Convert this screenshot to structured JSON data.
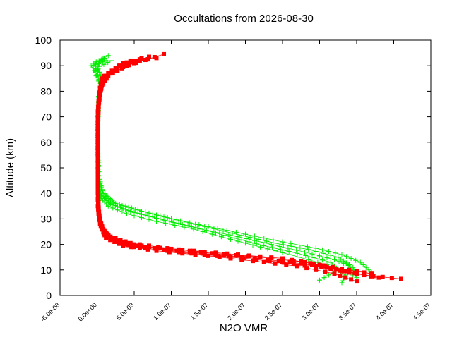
{
  "chart_data": {
    "type": "line",
    "title": "Occultations from 2026-08-30",
    "xlabel": "N2O VMR",
    "ylabel": "Altitude (km)",
    "xlim": [
      -5e-08,
      4.5e-07
    ],
    "ylim": [
      0,
      100
    ],
    "x_ticks": [
      -5e-08,
      0,
      5e-08,
      1e-07,
      1.5e-07,
      2e-07,
      2.5e-07,
      3e-07,
      3.5e-07,
      4e-07,
      4.5e-07
    ],
    "x_tick_labels": [
      "-5.0e-08",
      "0.0e+00",
      "5.0e-08",
      "1.0e-07",
      "1.5e-07",
      "2.0e-07",
      "2.5e-07",
      "3.0e-07",
      "3.5e-07",
      "4.0e-07",
      "4.5e-07"
    ],
    "y_ticks": [
      0,
      10,
      20,
      30,
      40,
      50,
      60,
      70,
      80,
      90,
      100
    ],
    "y_tick_labels": [
      "0",
      "10",
      "20",
      "30",
      "40",
      "50",
      "60",
      "70",
      "80",
      "90",
      "100"
    ],
    "grid": false,
    "legend": "none",
    "series": [
      {
        "color": "#00ee00",
        "marker": "plus",
        "profiles": [
          [
            [
              3.3e-07,
              5
            ],
            [
              3.35e-07,
              8
            ],
            [
              3.1e-07,
              12
            ],
            [
              2.6e-07,
              16
            ],
            [
              2.2e-07,
              19
            ],
            [
              1.8e-07,
              22
            ],
            [
              1.3e-07,
              26
            ],
            [
              8e-08,
              29
            ],
            [
              4e-08,
              32
            ],
            [
              1.5e-08,
              35
            ],
            [
              5e-09,
              38
            ],
            [
              2e-09,
              42
            ],
            [
              1e-09,
              50
            ],
            [
              1e-09,
              60
            ],
            [
              1e-09,
              70
            ],
            [
              3e-09,
              80
            ],
            [
              6e-09,
              86
            ],
            [
              -5e-09,
              91
            ],
            [
              1e-08,
              93
            ]
          ],
          [
            [
              3.5e-07,
              7
            ],
            [
              3.45e-07,
              11
            ],
            [
              3.2e-07,
              14
            ],
            [
              2.8e-07,
              17
            ],
            [
              2.35e-07,
              20
            ],
            [
              1.9e-07,
              23
            ],
            [
              1.4e-07,
              26
            ],
            [
              9e-08,
              29.5
            ],
            [
              5e-08,
              32.5
            ],
            [
              2e-08,
              35.5
            ],
            [
              6e-09,
              39
            ],
            [
              2e-09,
              44
            ],
            [
              1e-09,
              55
            ],
            [
              1e-09,
              65
            ],
            [
              2e-09,
              75
            ],
            [
              5e-09,
              82
            ],
            [
              -8e-09,
              90
            ],
            [
              1.5e-08,
              94
            ]
          ],
          [
            [
              3.7e-07,
              9
            ],
            [
              3.55e-07,
              13
            ],
            [
              3.3e-07,
              16
            ],
            [
              2.95e-07,
              18.5
            ],
            [
              2.5e-07,
              21
            ],
            [
              2e-07,
              24
            ],
            [
              1.5e-07,
              27
            ],
            [
              1e-07,
              30
            ],
            [
              6e-08,
              33
            ],
            [
              2.5e-08,
              36
            ],
            [
              8e-09,
              40
            ],
            [
              3e-09,
              46
            ],
            [
              1e-09,
              56
            ],
            [
              1e-09,
              66
            ],
            [
              2e-09,
              76
            ],
            [
              4e-09,
              84
            ],
            [
              -2e-09,
              89
            ],
            [
              2e-08,
              92
            ]
          ],
          [
            [
              3e-07,
              6
            ],
            [
              3.25e-07,
              10
            ],
            [
              3.15e-07,
              13
            ],
            [
              2.7e-07,
              16.5
            ],
            [
              2.25e-07,
              19.5
            ],
            [
              1.85e-07,
              22.5
            ],
            [
              1.35e-07,
              26.5
            ],
            [
              8.5e-08,
              30
            ],
            [
              4.5e-08,
              33
            ],
            [
              1.8e-08,
              36
            ],
            [
              5e-09,
              40
            ],
            [
              2e-09,
              48
            ],
            [
              1e-09,
              58
            ],
            [
              1e-09,
              68
            ],
            [
              2e-09,
              78
            ],
            [
              6e-09,
              85
            ],
            [
              0,
              90
            ],
            [
              8e-09,
              93
            ]
          ],
          [
            [
              3.45e-07,
              8
            ],
            [
              3.4e-07,
              12
            ],
            [
              3.25e-07,
              15
            ],
            [
              2.85e-07,
              18
            ],
            [
              2.4e-07,
              20.5
            ],
            [
              1.95e-07,
              23.5
            ],
            [
              1.45e-07,
              27
            ],
            [
              9.5e-08,
              30.5
            ],
            [
              5.5e-08,
              33.5
            ],
            [
              2.2e-08,
              36.5
            ],
            [
              7e-09,
              41
            ],
            [
              2e-09,
              47
            ],
            [
              1e-09,
              57
            ],
            [
              1e-09,
              67
            ],
            [
              2e-09,
              77
            ],
            [
              5e-09,
              83
            ],
            [
              -6e-09,
              90
            ],
            [
              1.2e-08,
              92
            ]
          ]
        ]
      },
      {
        "color": "#ff0000",
        "marker": "square",
        "profiles": [
          [
            [
              4.1e-07,
              6.5
            ],
            [
              3.6e-07,
              8
            ],
            [
              3.1e-07,
              11
            ],
            [
              2.5e-07,
              13
            ],
            [
              1.8e-07,
              15
            ],
            [
              1.1e-07,
              17
            ],
            [
              5e-08,
              19
            ],
            [
              2e-08,
              22
            ],
            [
              8e-09,
              26
            ],
            [
              3e-09,
              30
            ],
            [
              1e-09,
              35
            ],
            [
              1e-09,
              45
            ],
            [
              1e-09,
              55
            ],
            [
              1e-09,
              65
            ],
            [
              2e-09,
              75
            ],
            [
              6e-09,
              82
            ],
            [
              1.5e-08,
              86
            ],
            [
              4e-08,
              90
            ],
            [
              9e-08,
              94.5
            ]
          ],
          [
            [
              3.8e-07,
              7
            ],
            [
              3.4e-07,
              9
            ],
            [
              2.9e-07,
              12
            ],
            [
              2.3e-07,
              14
            ],
            [
              1.6e-07,
              16
            ],
            [
              9e-08,
              18
            ],
            [
              4e-08,
              20
            ],
            [
              1.5e-08,
              23
            ],
            [
              6e-09,
              27
            ],
            [
              2e-09,
              32
            ],
            [
              1e-09,
              40
            ],
            [
              1e-09,
              50
            ],
            [
              1e-09,
              60
            ],
            [
              1e-09,
              70
            ],
            [
              3e-09,
              78
            ],
            [
              8e-09,
              84
            ],
            [
              2e-08,
              88
            ],
            [
              5e-08,
              91
            ],
            [
              6e-08,
              93
            ]
          ],
          [
            [
              3.5e-07,
              5.5
            ],
            [
              3.2e-07,
              8.5
            ],
            [
              2.7e-07,
              11.5
            ],
            [
              2.1e-07,
              13.5
            ],
            [
              1.5e-07,
              15.5
            ],
            [
              8e-08,
              17.5
            ],
            [
              3.5e-08,
              19.5
            ],
            [
              1.2e-08,
              22.5
            ],
            [
              5e-09,
              27
            ],
            [
              2e-09,
              33
            ],
            [
              1e-09,
              42
            ],
            [
              1e-09,
              52
            ],
            [
              1e-09,
              62
            ],
            [
              1e-09,
              72
            ],
            [
              3e-09,
              79
            ],
            [
              7e-09,
              85
            ],
            [
              2.5e-08,
              89
            ],
            [
              4.5e-08,
              92
            ]
          ],
          [
            [
              3.3e-07,
              9.5
            ],
            [
              3e-07,
              12
            ],
            [
              2.5e-07,
              14.5
            ],
            [
              1.9e-07,
              16
            ],
            [
              1.3e-07,
              17.5
            ],
            [
              7e-08,
              19
            ],
            [
              3e-08,
              21
            ],
            [
              1e-08,
              24
            ],
            [
              4e-09,
              28
            ],
            [
              2e-09,
              34
            ],
            [
              1e-09,
              44
            ],
            [
              1e-09,
              54
            ],
            [
              1e-09,
              64
            ],
            [
              2e-09,
              74
            ],
            [
              4e-09,
              80
            ],
            [
              1e-08,
              86
            ],
            [
              3e-08,
              90
            ],
            [
              7e-08,
              93.5
            ]
          ],
          [
            [
              3.7e-07,
              8.5
            ],
            [
              3.3e-07,
              10.5
            ],
            [
              2.8e-07,
              13
            ],
            [
              2.2e-07,
              15
            ],
            [
              1.55e-07,
              16.5
            ],
            [
              9.5e-08,
              18.5
            ],
            [
              4.5e-08,
              20.5
            ],
            [
              1.8e-08,
              23
            ],
            [
              7e-09,
              26
            ],
            [
              3e-09,
              31
            ],
            [
              1e-09,
              38
            ],
            [
              1e-09,
              48
            ],
            [
              1e-09,
              58
            ],
            [
              1e-09,
              68
            ],
            [
              2e-09,
              76
            ],
            [
              5e-09,
              83
            ],
            [
              1.8e-08,
              87
            ],
            [
              3.5e-08,
              91
            ],
            [
              8e-08,
              93
            ]
          ]
        ]
      }
    ]
  }
}
